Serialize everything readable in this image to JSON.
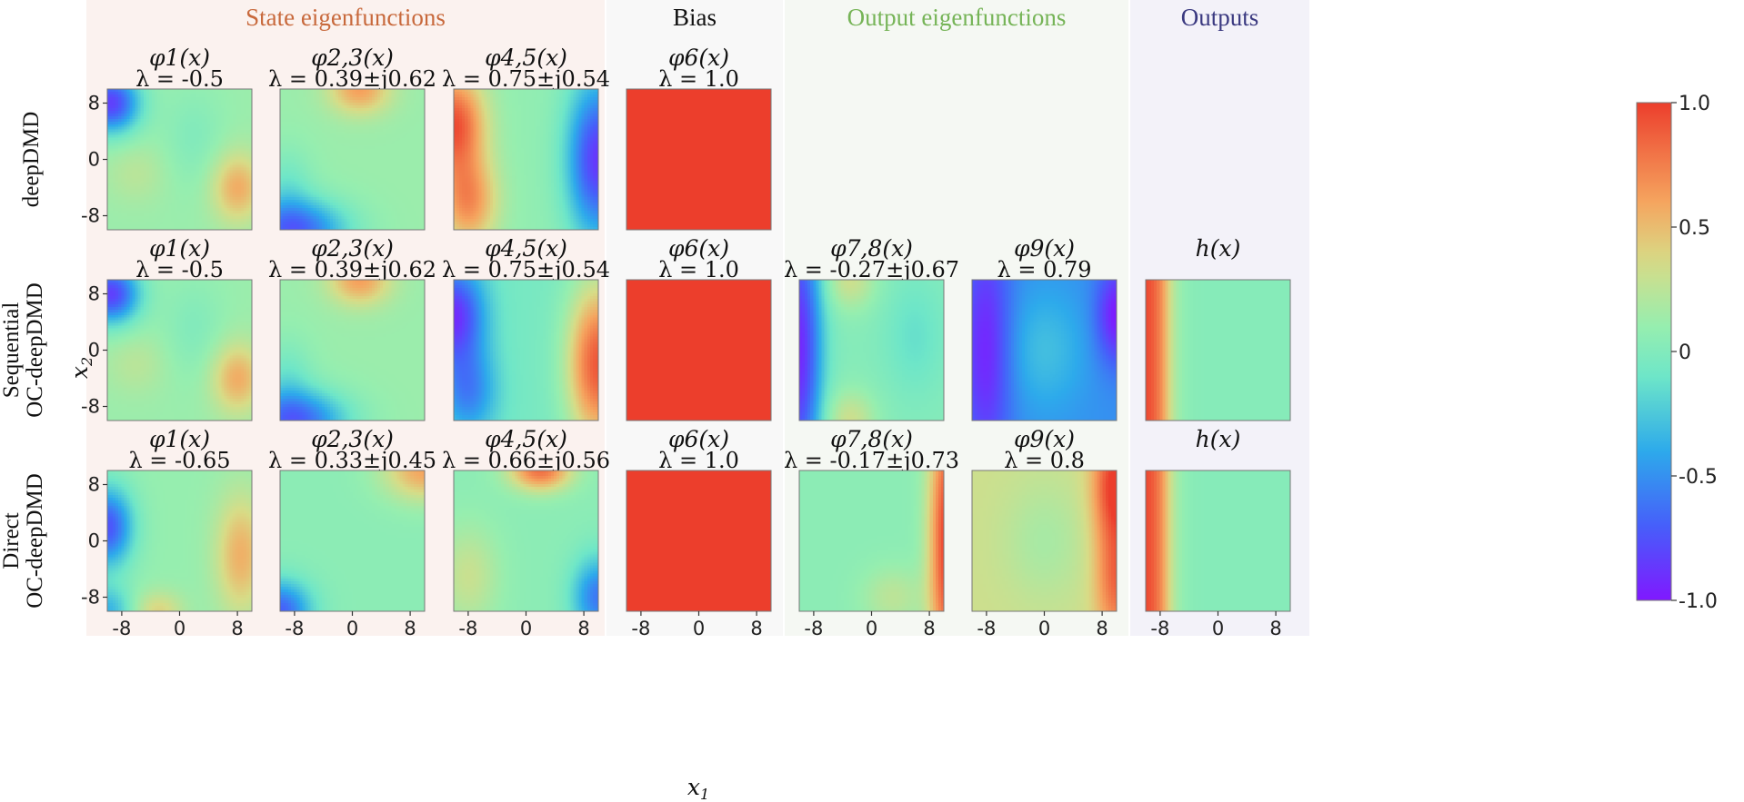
{
  "sections": [
    {
      "title": "State eigenfunctions",
      "color": "#c8693c",
      "bg": "#fbf2ef"
    },
    {
      "title": "Bias",
      "color": "#111111",
      "bg": "#f8f8f8"
    },
    {
      "title": "Output eigenfunctions",
      "color": "#76b457",
      "bg": "#f5f8f3"
    },
    {
      "title": "Outputs",
      "color": "#3a3980",
      "bg": "#f3f2f9"
    }
  ],
  "rows": [
    {
      "label_lines": [
        "deepDMD"
      ],
      "panels": [
        {
          "func": "φ1(x)",
          "lambda": "λ = -0.5",
          "pattern": "s1_a"
        },
        {
          "func": "φ2,3(x)",
          "lambda": "λ = 0.39±j0.62",
          "pattern": "s23_a"
        },
        {
          "func": "φ4,5(x)",
          "lambda": "λ = 0.75±j0.54",
          "pattern": "s45_a"
        },
        {
          "func": "φ6(x)",
          "lambda": "λ = 1.0",
          "pattern": "bias"
        },
        null,
        null,
        null
      ]
    },
    {
      "label_lines": [
        "Sequential",
        "OC-deepDMD"
      ],
      "panels": [
        {
          "func": "φ1(x)",
          "lambda": "λ = -0.5",
          "pattern": "s1_a"
        },
        {
          "func": "φ2,3(x)",
          "lambda": "λ = 0.39±j0.62",
          "pattern": "s23_a"
        },
        {
          "func": "φ4,5(x)",
          "lambda": "λ = 0.75±j0.54",
          "pattern": "s45_b"
        },
        {
          "func": "φ6(x)",
          "lambda": "λ = 1.0",
          "pattern": "bias"
        },
        {
          "func": "φ7,8(x)",
          "lambda": "λ = -0.27±j0.67",
          "pattern": "o78_b"
        },
        {
          "func": "φ9(x)",
          "lambda": "λ = 0.79",
          "pattern": "o9_b"
        },
        {
          "func": "h(x)",
          "lambda": "",
          "pattern": "h"
        }
      ]
    },
    {
      "label_lines": [
        "Direct",
        "OC-deepDMD"
      ],
      "panels": [
        {
          "func": "φ1(x)",
          "lambda": "λ = -0.65",
          "pattern": "s1_c"
        },
        {
          "func": "φ2,3(x)",
          "lambda": "λ = 0.33±j0.45",
          "pattern": "s23_c"
        },
        {
          "func": "φ4,5(x)",
          "lambda": "λ = 0.66±j0.56",
          "pattern": "s45_c"
        },
        {
          "func": "φ6(x)",
          "lambda": "λ = 1.0",
          "pattern": "bias"
        },
        {
          "func": "φ7,8(x)",
          "lambda": "λ = -0.17±j0.73",
          "pattern": "o78_c"
        },
        {
          "func": "φ9(x)",
          "lambda": "λ = 0.8",
          "pattern": "o9_c"
        },
        {
          "func": "h(x)",
          "lambda": "",
          "pattern": "h"
        }
      ]
    }
  ],
  "chart_data": {
    "type": "heatmap",
    "xlabel": "x1",
    "ylabel": "x2",
    "x_ticks": [
      "-8",
      "0",
      "8"
    ],
    "y_ticks": [
      "8",
      "0",
      "-8"
    ],
    "xlim": [
      -10,
      10
    ],
    "ylim": [
      -10,
      10
    ],
    "colorbar": {
      "ticks": [
        "1.0",
        "0.5",
        "0",
        "-0.5",
        "-1.0"
      ],
      "range": [
        -1.0,
        1.0
      ],
      "colormap": "rainbow"
    }
  }
}
